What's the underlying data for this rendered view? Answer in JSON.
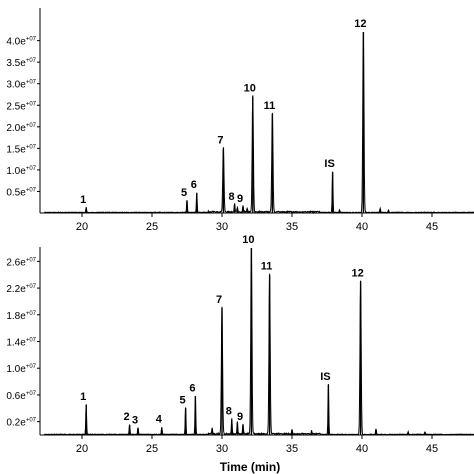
{
  "chart_data": [
    {
      "type": "line",
      "panel": "top",
      "xlim": [
        17,
        48
      ],
      "ylim": [
        0,
        42000000
      ],
      "x_ticks": [
        20,
        25,
        30,
        35,
        40,
        45
      ],
      "x_tick_labels": [
        "20",
        "25",
        "30",
        "35",
        "40",
        "45"
      ],
      "y_ticks": [
        5000000,
        10000000,
        15000000,
        20000000,
        25000000,
        30000000,
        35000000,
        40000000
      ],
      "y_tick_labels": [
        {
          "base": "0.5e",
          "exp": "+07"
        },
        {
          "base": "1.0e",
          "exp": "+07"
        },
        {
          "base": "1.5e",
          "exp": "+07"
        },
        {
          "base": "2.0e",
          "exp": "+07"
        },
        {
          "base": "2.5e",
          "exp": "+07"
        },
        {
          "base": "3.0e",
          "exp": "+07"
        },
        {
          "base": "3.5e",
          "exp": "+07"
        },
        {
          "base": "4.0e",
          "exp": "+07"
        }
      ],
      "peaks": [
        {
          "label": "1",
          "x": 20.3,
          "y": 1200000
        },
        {
          "label": "5",
          "x": 27.5,
          "y": 2800000
        },
        {
          "label": "6",
          "x": 28.2,
          "y": 4600000
        },
        {
          "label": "7",
          "x": 30.1,
          "y": 15000000
        },
        {
          "label": "8",
          "x": 30.9,
          "y": 1900000
        },
        {
          "label": "9",
          "x": 31.5,
          "y": 1400000
        },
        {
          "label": "",
          "x": 31.1,
          "y": 1100000
        },
        {
          "label": "",
          "x": 31.8,
          "y": 900000
        },
        {
          "label": "10",
          "x": 32.2,
          "y": 27000000
        },
        {
          "label": "11",
          "x": 33.6,
          "y": 23000000
        },
        {
          "label": "IS",
          "x": 37.9,
          "y": 9500000
        },
        {
          "label": "",
          "x": 38.4,
          "y": 600000
        },
        {
          "label": "12",
          "x": 40.1,
          "y": 42000000
        },
        {
          "label": "",
          "x": 41.3,
          "y": 900000
        },
        {
          "label": "",
          "x": 41.9,
          "y": 500000
        }
      ]
    },
    {
      "type": "line",
      "panel": "bottom",
      "xlim": [
        17,
        48
      ],
      "ylim": [
        0,
        28000000
      ],
      "x_ticks": [
        20,
        25,
        30,
        35,
        40,
        45
      ],
      "x_tick_labels": [
        "20",
        "25",
        "30",
        "35",
        "40",
        "45"
      ],
      "y_ticks": [
        2000000,
        6000000,
        10000000,
        14000000,
        18000000,
        22000000,
        26000000
      ],
      "y_tick_labels": [
        {
          "base": "0.2e",
          "exp": "+07"
        },
        {
          "base": "0.6e",
          "exp": "+07"
        },
        {
          "base": "1.0e",
          "exp": "+07"
        },
        {
          "base": "1.4e",
          "exp": "+07"
        },
        {
          "base": "1.8e",
          "exp": "+07"
        },
        {
          "base": "2.2e",
          "exp": "+07"
        },
        {
          "base": "2.6e",
          "exp": "+07"
        }
      ],
      "xlabel": "Time (min)",
      "peaks": [
        {
          "label": "1",
          "x": 20.3,
          "y": 4500000
        },
        {
          "label": "2",
          "x": 23.4,
          "y": 1500000
        },
        {
          "label": "3",
          "x": 24.0,
          "y": 1000000
        },
        {
          "label": "4",
          "x": 25.7,
          "y": 1100000
        },
        {
          "label": "5",
          "x": 27.4,
          "y": 4000000
        },
        {
          "label": "6",
          "x": 28.1,
          "y": 5800000
        },
        {
          "label": "",
          "x": 29.3,
          "y": 900000
        },
        {
          "label": "7",
          "x": 30.0,
          "y": 19000000
        },
        {
          "label": "8",
          "x": 30.7,
          "y": 2300000
        },
        {
          "label": "",
          "x": 31.1,
          "y": 1800000
        },
        {
          "label": "9",
          "x": 31.5,
          "y": 1500000
        },
        {
          "label": "10",
          "x": 32.1,
          "y": 28000000
        },
        {
          "label": "11",
          "x": 33.4,
          "y": 24000000
        },
        {
          "label": "",
          "x": 35.0,
          "y": 700000
        },
        {
          "label": "",
          "x": 36.4,
          "y": 500000
        },
        {
          "label": "IS",
          "x": 37.6,
          "y": 7500000
        },
        {
          "label": "12",
          "x": 39.9,
          "y": 23000000
        },
        {
          "label": "",
          "x": 41.0,
          "y": 800000
        },
        {
          "label": "",
          "x": 43.3,
          "y": 400000
        },
        {
          "label": "",
          "x": 44.5,
          "y": 350000
        }
      ]
    }
  ]
}
